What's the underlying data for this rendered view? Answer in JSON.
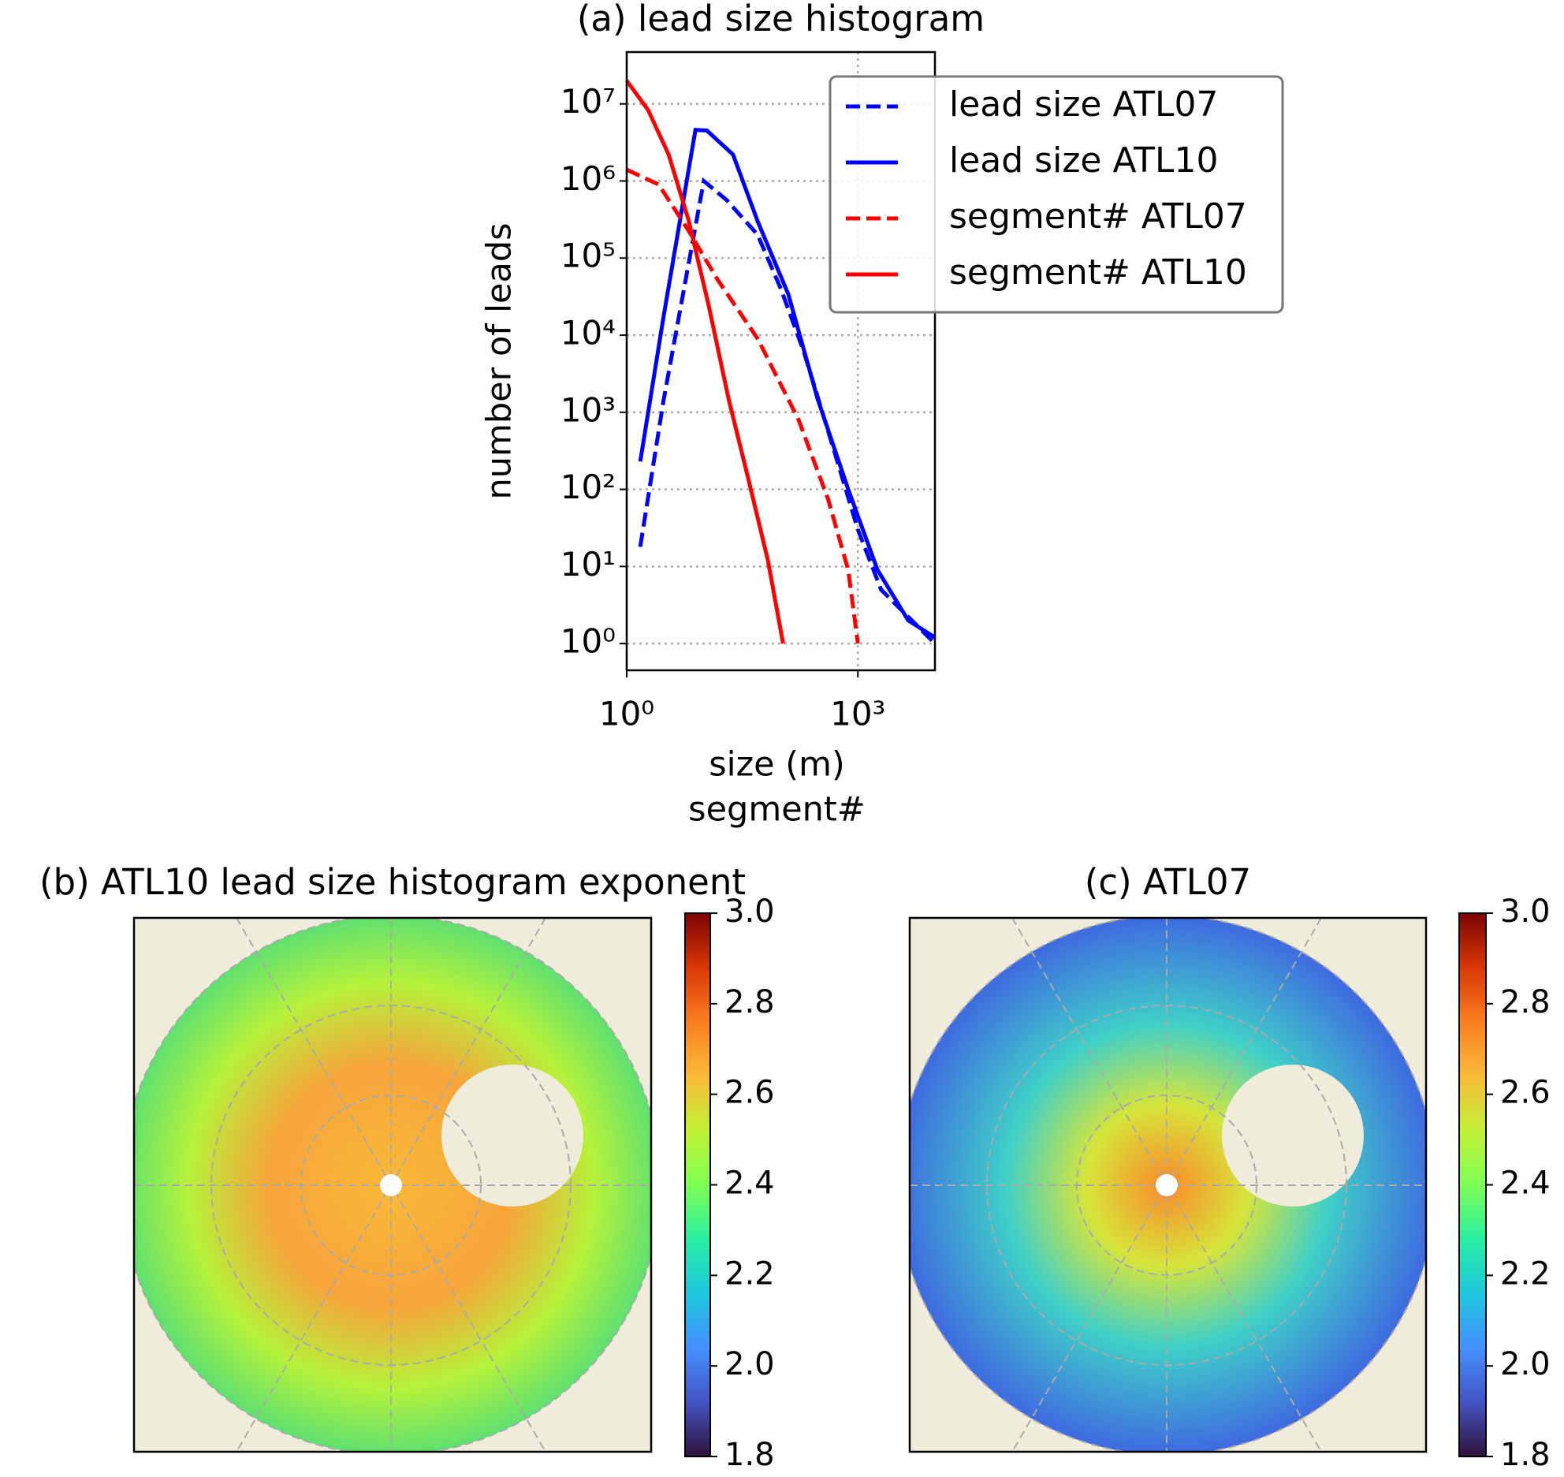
{
  "chart_data": [
    {
      "type": "line",
      "title": "(a) lead size histogram",
      "xlabel": [
        "size (m)",
        "segment#"
      ],
      "ylabel": "number of leads",
      "xscale": "log",
      "yscale": "log",
      "xlim": [
        1,
        10000
      ],
      "ylim": [
        0.45,
        47000000
      ],
      "xticks": [
        {
          "value": 1,
          "label": "10⁰"
        },
        {
          "value": 1000,
          "label": "10³"
        }
      ],
      "yticks": [
        {
          "value": 1,
          "label": "10⁰"
        },
        {
          "value": 10,
          "label": "10¹"
        },
        {
          "value": 100,
          "label": "10²"
        },
        {
          "value": 1000,
          "label": "10³"
        },
        {
          "value": 10000,
          "label": "10⁴"
        },
        {
          "value": 100000,
          "label": "10⁵"
        },
        {
          "value": 1000000,
          "label": "10⁶"
        },
        {
          "value": 10000000,
          "label": "10⁷"
        }
      ],
      "grid": true,
      "legend": "upper right",
      "series": [
        {
          "name": "lead size ATL07",
          "color": "#0000ff",
          "linestyle": "dashed",
          "x": [
            1.5,
            3,
            10,
            20,
            50,
            100,
            200,
            500,
            1000,
            2000,
            5000,
            10000
          ],
          "values": [
            18,
            1400,
            1000000,
            560000,
            200000,
            40000,
            6000,
            300,
            30,
            5,
            2,
            1
          ]
        },
        {
          "name": "lead size ATL10",
          "color": "#0000ff",
          "linestyle": "solid",
          "x": [
            1.5,
            3,
            7.8,
            11,
            24,
            50,
            125,
            300,
            750,
            1800,
            4500,
            10000
          ],
          "values": [
            230,
            17000,
            4600000,
            4500000,
            2200000,
            300000,
            34000,
            1500,
            100,
            9,
            2,
            1.2
          ]
        },
        {
          "name": "segment# ATL07",
          "color": "#ff0000",
          "linestyle": "dashed",
          "x": [
            1,
            2.6,
            6.3,
            15,
            50,
            170,
            410,
            750,
            1000
          ],
          "values": [
            1400000,
            900000,
            230000,
            53000,
            9000,
            800,
            75,
            9,
            1
          ]
        },
        {
          "name": "segment# ATL10",
          "color": "#ff0000",
          "linestyle": "solid",
          "x": [
            1,
            1.9,
            3.5,
            6.3,
            11.5,
            21,
            38,
            68,
            107
          ],
          "values": [
            20000000,
            8300000,
            2200000,
            320000,
            25000,
            1500,
            135,
            12,
            1
          ]
        }
      ]
    },
    {
      "type": "map",
      "title": "(b) ATL10 lead size histogram exponent",
      "colormap": "turbo",
      "clim": [
        1.8,
        3.0
      ],
      "colorbar_ticks": [
        1.8,
        {
          "value": 2,
          "label": "2.0"
        },
        2.2,
        2.4,
        2.6,
        2.8,
        {
          "value": 3,
          "label": "3.0"
        }
      ]
    },
    {
      "type": "map",
      "title": "(c) ATL07",
      "colormap": "turbo",
      "clim": [
        1.8,
        3.0
      ],
      "colorbar_ticks": [
        1.8,
        {
          "value": 2,
          "label": "2.0"
        },
        2.2,
        2.4,
        2.6,
        2.8,
        {
          "value": 3,
          "label": "3.0"
        }
      ]
    }
  ]
}
